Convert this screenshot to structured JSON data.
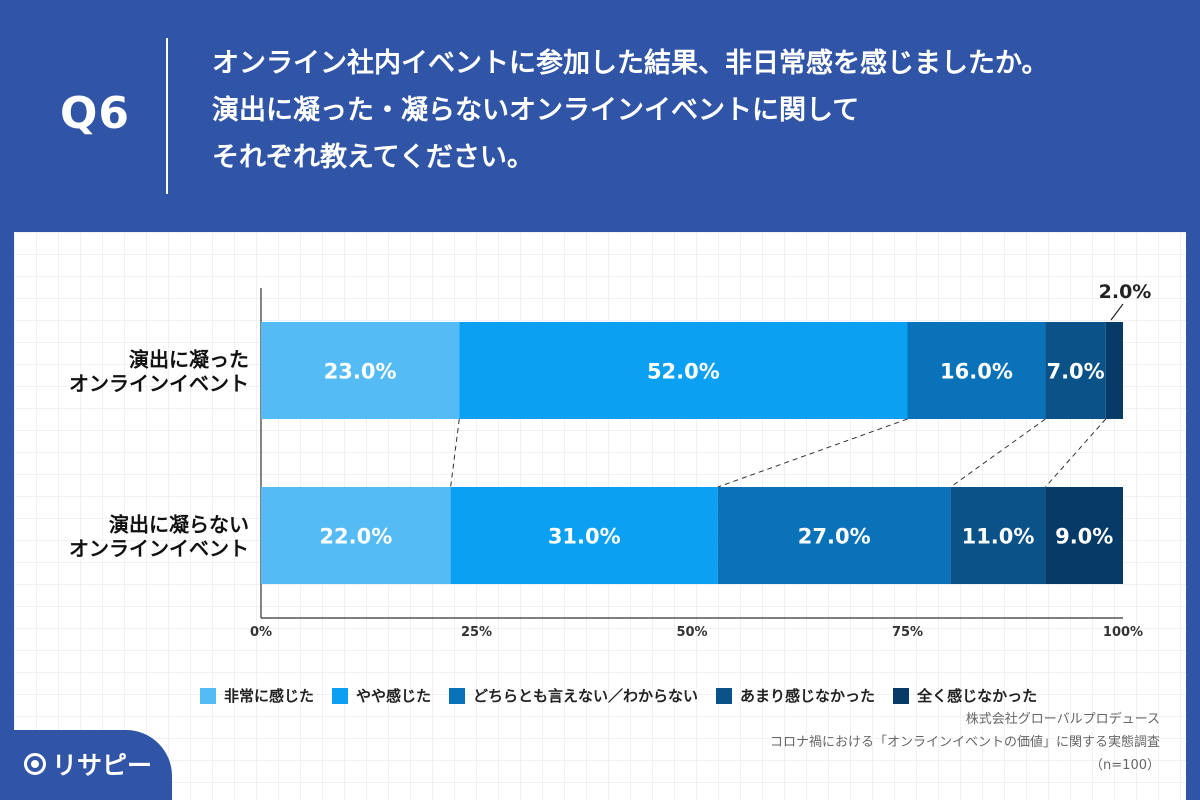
{
  "header": {
    "q_label": "Q6",
    "question_lines": [
      "オンライン社内イベントに参加した結果、非日常感を感じましたか。",
      "演出に凝った・凝らないオンラインイベントに関して",
      "それぞれ教えてください。"
    ]
  },
  "chart_data": {
    "type": "bar",
    "orientation": "horizontal",
    "stacked": true,
    "categories": [
      [
        "演出に凝った",
        "オンラインイベント"
      ],
      [
        "演出に凝らない",
        "オンラインイベント"
      ]
    ],
    "series": [
      {
        "name": "非常に感じた",
        "color": "#55bbf5",
        "values": [
          23.0,
          22.0
        ],
        "labels": [
          "23.0%",
          "22.0%"
        ]
      },
      {
        "name": "やや感じた",
        "color": "#0ba0f2",
        "values": [
          52.0,
          31.0
        ],
        "labels": [
          "52.0%",
          "31.0%"
        ]
      },
      {
        "name": "どちらとも言えない／わからない",
        "color": "#0a72b8",
        "values": [
          16.0,
          27.0
        ],
        "labels": [
          "16.0%",
          "27.0%"
        ]
      },
      {
        "name": "あまり感じなかった",
        "color": "#0a5287",
        "values": [
          7.0,
          11.0
        ],
        "labels": [
          "7.0%",
          "11.0%"
        ]
      },
      {
        "name": "全く感じなかった",
        "color": "#073a66",
        "values": [
          2.0,
          9.0
        ],
        "labels": [
          "2.0%",
          "9.0%"
        ]
      }
    ],
    "xlim": [
      0,
      100
    ],
    "x_ticks": [
      "0%",
      "25%",
      "50%",
      "75%",
      "100%"
    ],
    "legend_position": "bottom",
    "connectors": true
  },
  "source": {
    "company": "株式会社グローバルプロデュース",
    "survey": "コロナ禍における「オンラインイベントの価値」に関する実態調査",
    "sample": "（n=100）"
  },
  "logo": {
    "text": "リサピー"
  }
}
